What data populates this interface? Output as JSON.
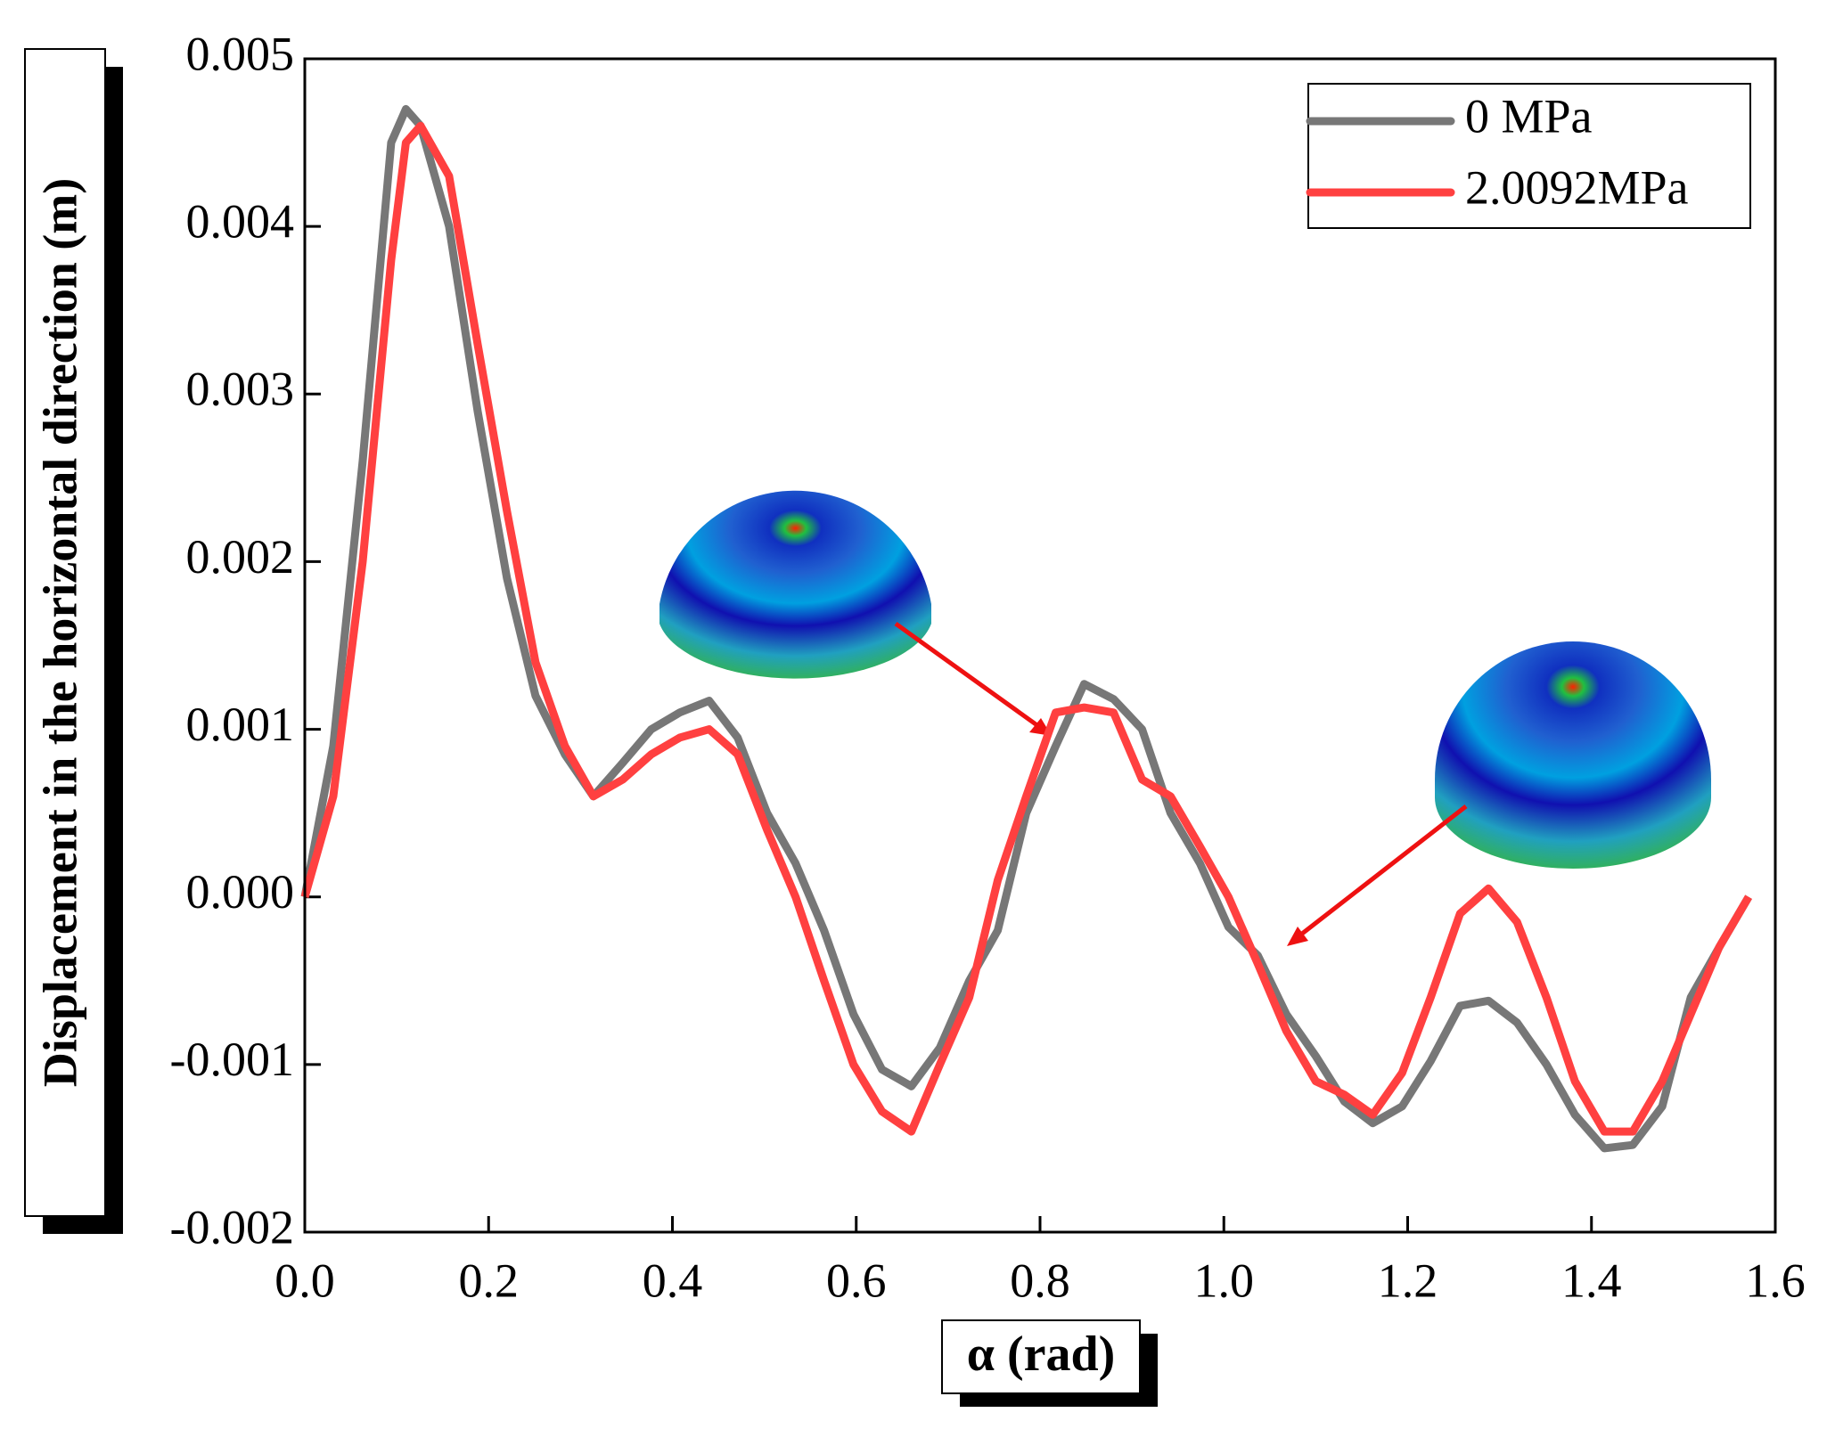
{
  "chart_data": {
    "type": "line",
    "xlabel": "α (rad)",
    "ylabel": "Displacement in the horizontal direction (m)",
    "x": [
      0,
      0.031,
      0.063,
      0.094,
      0.11,
      0.126,
      0.157,
      0.188,
      0.22,
      0.251,
      0.283,
      0.314,
      0.346,
      0.377,
      0.408,
      0.44,
      0.471,
      0.503,
      0.534,
      0.565,
      0.597,
      0.628,
      0.66,
      0.691,
      0.723,
      0.754,
      0.785,
      0.817,
      0.848,
      0.88,
      0.911,
      0.942,
      0.974,
      1.005,
      1.037,
      1.068,
      1.1,
      1.131,
      1.162,
      1.194,
      1.225,
      1.257,
      1.288,
      1.319,
      1.351,
      1.382,
      1.414,
      1.445,
      1.477,
      1.508,
      1.539,
      1.571
    ],
    "series": [
      {
        "name": "0 MPa",
        "color": "#777777",
        "values": [
          0,
          0.0009,
          0.0026,
          0.0045,
          0.0047,
          0.0046,
          0.004,
          0.0029,
          0.0019,
          0.0012,
          0.00085,
          0.0006,
          0.0008,
          0.001,
          0.0011,
          0.00117,
          0.00095,
          0.0005,
          0.0002,
          -0.0002,
          -0.0007,
          -0.00103,
          -0.00113,
          -0.0009,
          -0.0005,
          -0.0002,
          0.0005,
          0.0009,
          0.00127,
          0.00118,
          0.001,
          0.0005,
          0.0002,
          -0.00018,
          -0.00035,
          -0.0007,
          -0.00095,
          -0.00122,
          -0.00135,
          -0.00125,
          -0.00098,
          -0.00065,
          -0.00062,
          -0.00075,
          -0.001,
          -0.0013,
          -0.0015,
          -0.00148,
          -0.00125,
          -0.0006,
          -0.0003,
          0
        ]
      },
      {
        "name": "2.0092MPa",
        "color": "#ff4040",
        "values": [
          0,
          0.0006,
          0.002,
          0.0038,
          0.0045,
          0.0046,
          0.0043,
          0.0033,
          0.0023,
          0.0014,
          0.0009,
          0.0006,
          0.0007,
          0.00085,
          0.00095,
          0.001,
          0.00085,
          0.0004,
          0,
          -0.0005,
          -0.001,
          -0.00128,
          -0.0014,
          -0.001,
          -0.0006,
          0.0001,
          0.0006,
          0.0011,
          0.00113,
          0.0011,
          0.0007,
          0.0006,
          0.0003,
          0,
          -0.0004,
          -0.0008,
          -0.0011,
          -0.00118,
          -0.0013,
          -0.00105,
          -0.0006,
          -0.0001,
          5e-05,
          -0.00015,
          -0.0006,
          -0.0011,
          -0.0014,
          -0.0014,
          -0.0011,
          -0.0007,
          -0.0003,
          0
        ]
      }
    ],
    "xlim": [
      0,
      1.6
    ],
    "xticks": [
      {
        "value": 0,
        "label": "0.0"
      },
      0.2,
      0.4,
      0.6,
      0.8,
      {
        "value": 1,
        "label": "1.0"
      },
      1.2,
      1.4,
      1.6
    ],
    "ylim": [
      -0.002,
      0.005
    ],
    "yticks": [
      -0.002,
      -0.001,
      {
        "value": 0,
        "label": "0.000"
      },
      0.001,
      0.002,
      0.003,
      0.004,
      0.005
    ],
    "legend": "upper right"
  }
}
